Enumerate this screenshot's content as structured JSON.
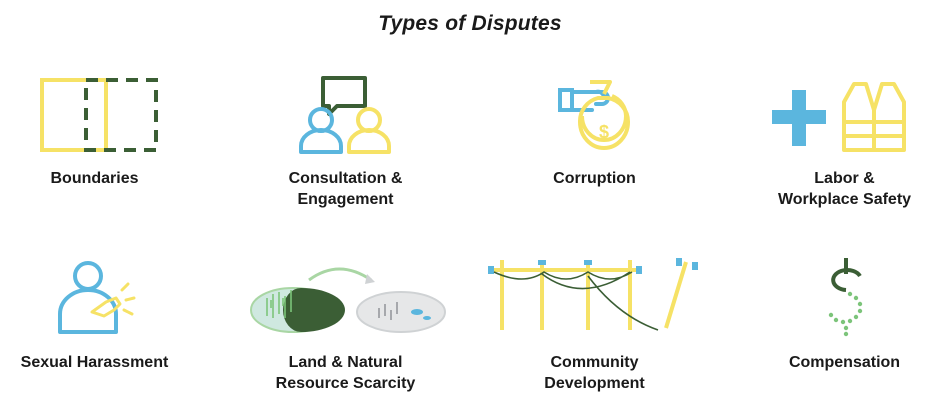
{
  "title": "Types of Disputes",
  "colors": {
    "yellow": "#f6e266",
    "blue": "#5bb6de",
    "green": "#3b5e35",
    "light_green": "#a9d6a4",
    "gray": "#cfd2d4"
  },
  "items": [
    {
      "id": "boundaries",
      "icon": "boundary-squares-icon",
      "label_lines": [
        "Boundaries"
      ]
    },
    {
      "id": "consultation",
      "icon": "people-speech-bubble-icon",
      "label_lines": [
        "Consultation &",
        "Engagement"
      ]
    },
    {
      "id": "corruption",
      "icon": "hand-money-bag-icon",
      "label_lines": [
        "Corruption"
      ]
    },
    {
      "id": "labor",
      "icon": "cross-safety-vest-icon",
      "label_lines": [
        "Labor &",
        "Workplace Safety"
      ]
    },
    {
      "id": "harassment",
      "icon": "person-touched-shoulder-icon",
      "label_lines": [
        "Sexual Harassment"
      ]
    },
    {
      "id": "scarcity",
      "icon": "land-scarcity-icon",
      "label_lines": [
        "Land & Natural",
        "Resource Scarcity"
      ]
    },
    {
      "id": "community",
      "icon": "power-poles-icon",
      "label_lines": [
        "Community",
        "Development"
      ]
    },
    {
      "id": "compensation",
      "icon": "dollar-sign-icon",
      "label_lines": [
        "Compensation"
      ]
    }
  ]
}
